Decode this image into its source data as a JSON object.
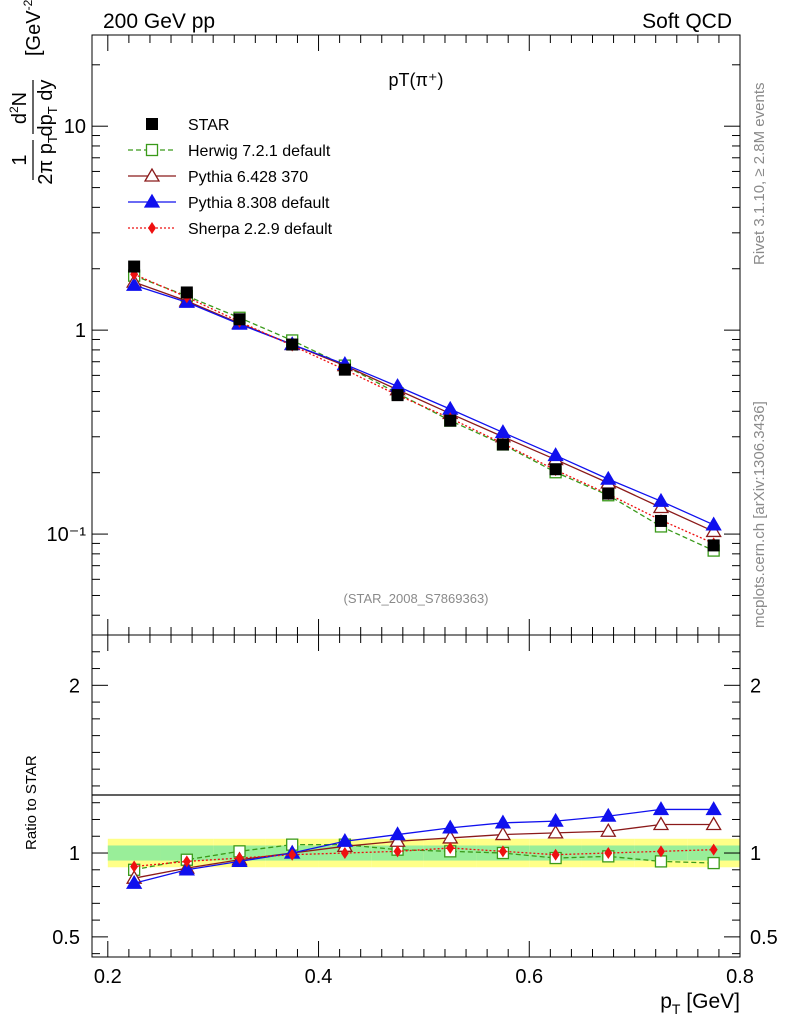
{
  "header": {
    "energy_label": "200 GeV pp",
    "process_label": "Soft QCD"
  },
  "side_text": {
    "rivet": "Rivet 3.1.10, ≥ 2.8M events",
    "source": "mcplots.cern.ch [arXiv:1306.3436]"
  },
  "chart_data": [
    {
      "type": "line",
      "title": "pT(π⁺)",
      "analysis_label": "(STAR_2008_S7869363)",
      "xlabel": "p_T [GeV]",
      "ylabel": "1/(2π p_T) d²N/(dp_T dy) [GeV⁻²]",
      "yscale": "log",
      "xlim": [
        0.185,
        0.8
      ],
      "ylim": [
        0.032,
        28
      ],
      "y_ticks": [
        {
          "value": 0.1,
          "label": "10⁻¹"
        },
        {
          "value": 1,
          "label": "1"
        },
        {
          "value": 10,
          "label": "10"
        }
      ],
      "legend_position": "top-left",
      "x": [
        0.225,
        0.275,
        0.325,
        0.375,
        0.425,
        0.475,
        0.525,
        0.575,
        0.625,
        0.675,
        0.725,
        0.775
      ],
      "series": [
        {
          "name": "STAR",
          "color": "#000000",
          "marker": "filled-square",
          "line": "none",
          "values": [
            2.05,
            1.53,
            1.13,
            0.85,
            0.64,
            0.48,
            0.36,
            0.275,
            0.208,
            0.158,
            0.116,
            0.088
          ]
        },
        {
          "name": "Herwig 7.2.1 default",
          "color": "#3a9a1a",
          "marker": "open-square",
          "line": "dashed",
          "values": [
            1.85,
            1.47,
            1.15,
            0.89,
            0.67,
            0.49,
            0.36,
            0.275,
            0.201,
            0.155,
            0.109,
            0.083
          ]
        },
        {
          "name": "Pythia 6.428 370",
          "color": "#8b1a1a",
          "marker": "open-triangle",
          "line": "solid",
          "values": [
            1.72,
            1.39,
            1.08,
            0.85,
            0.67,
            0.51,
            0.39,
            0.3,
            0.232,
            0.178,
            0.135,
            0.103
          ]
        },
        {
          "name": "Pythia 8.308 default",
          "color": "#1010ee",
          "marker": "filled-triangle",
          "line": "solid",
          "values": [
            1.66,
            1.37,
            1.07,
            0.85,
            0.68,
            0.53,
            0.41,
            0.315,
            0.243,
            0.186,
            0.145,
            0.111
          ]
        },
        {
          "name": "Sherpa 2.2.9 default",
          "color": "#ee1010",
          "marker": "filled-diamond",
          "line": "dotted",
          "values": [
            1.88,
            1.45,
            1.1,
            0.84,
            0.64,
            0.48,
            0.37,
            0.278,
            0.206,
            0.157,
            0.117,
            0.09
          ]
        }
      ]
    },
    {
      "type": "line",
      "title": "",
      "xlabel": "p_T [GeV]",
      "ylabel": "Ratio to STAR",
      "xlim": [
        0.185,
        0.8
      ],
      "ylim": [
        0.38,
        2.3
      ],
      "x_ticks": [
        0.2,
        0.4,
        0.6,
        0.8
      ],
      "y_ticks": [
        0.5,
        1,
        2
      ],
      "x": [
        0.225,
        0.275,
        0.325,
        0.375,
        0.425,
        0.475,
        0.525,
        0.575,
        0.625,
        0.675,
        0.725,
        0.775
      ],
      "band_outer_rel": 0.085,
      "band_inner_rel": 0.045,
      "band_outer_color": "#ffff88",
      "band_inner_color": "#99ee99",
      "series": [
        {
          "name": "Herwig 7.2.1 default",
          "values": [
            0.9,
            0.96,
            1.01,
            1.05,
            1.05,
            1.02,
            1.01,
            1.0,
            0.97,
            0.98,
            0.95,
            0.94
          ]
        },
        {
          "name": "Pythia 6.428 370",
          "values": [
            0.85,
            0.91,
            0.96,
            1.0,
            1.04,
            1.07,
            1.09,
            1.11,
            1.12,
            1.13,
            1.17,
            1.17
          ]
        },
        {
          "name": "Pythia 8.308 default",
          "values": [
            0.82,
            0.9,
            0.95,
            1.0,
            1.07,
            1.11,
            1.15,
            1.18,
            1.19,
            1.22,
            1.26,
            1.26
          ]
        },
        {
          "name": "Sherpa 2.2.9 default",
          "values": [
            0.92,
            0.95,
            0.97,
            0.99,
            1.0,
            1.01,
            1.03,
            1.01,
            0.99,
            1.0,
            1.01,
            1.02
          ]
        }
      ]
    }
  ]
}
